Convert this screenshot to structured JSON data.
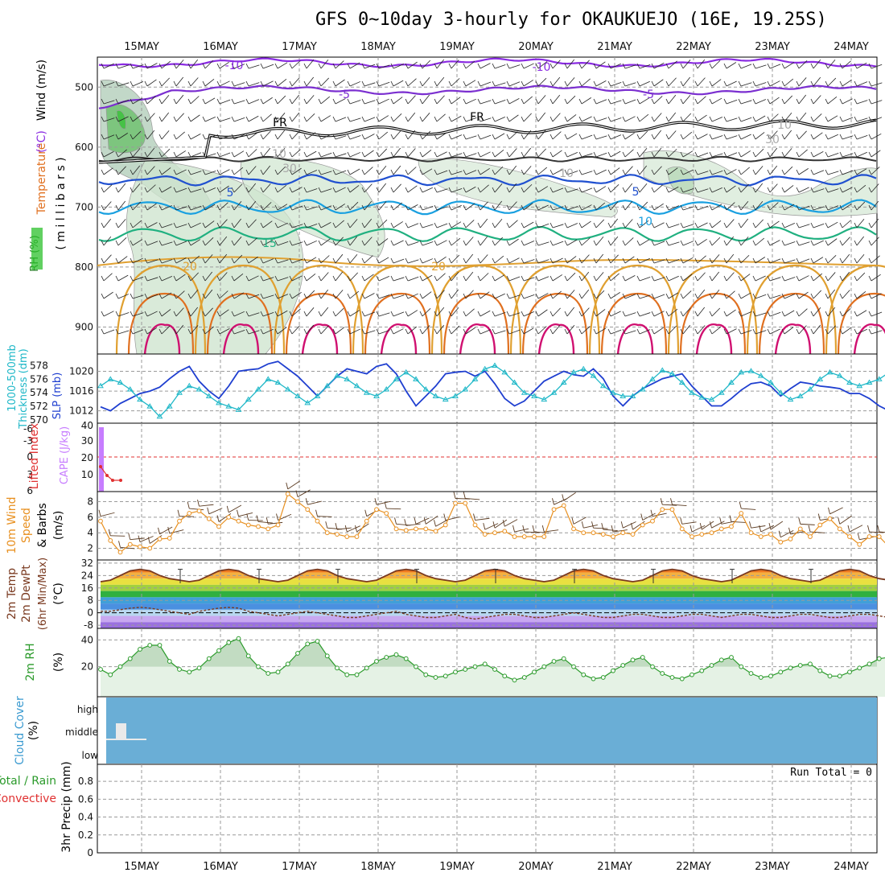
{
  "title": "GFS 0~10day 3-hourly for OKAUKUEJO (16E, 19.25S)",
  "colors": {
    "grid": "#9a9a9a",
    "temp_minus10": "#8a2be2",
    "temp_minus5": "#7b2fd0",
    "freezing": "#000000",
    "temp_5": "#2050d0",
    "temp_10": "#1aa0e0",
    "temp_15": "#20b080",
    "temp_20": "#e0a030",
    "temp_25": "#e07020",
    "temp_30": "#d01070",
    "rh_fill": "#cfe5cf",
    "rh_dark": "#8fb89a",
    "slp": "#1f3fd0",
    "thickness": "#20b8c8",
    "cape": "#c77dff",
    "li": "#e03030",
    "wind10": "#e89020",
    "barb": "#5a3a20",
    "temp2m": "#7a3a20",
    "dew2m": "#7a3a20",
    "rh2m": "#2a9a2a",
    "cloud": "#6aaed6"
  },
  "dates": [
    "15MAY",
    "16MAY",
    "17MAY",
    "18MAY",
    "19MAY",
    "20MAY",
    "21MAY",
    "22MAY",
    "23MAY",
    "24MAY"
  ],
  "panels": {
    "upper": {
      "ylabel_parts": [
        {
          "text": "RH (%)",
          "color": "#1a7a1a"
        },
        {
          "text": "Temperature",
          "color": "#e07020"
        },
        {
          "text": "(°C)",
          "color": "#8a2be2"
        },
        {
          "text": "Wind (m/s)",
          "color": "#000000"
        }
      ],
      "ylabel2": "( m i l l i b a r s )",
      "yticks": [
        "500",
        "600",
        "700",
        "800",
        "900"
      ],
      "contour_labels": [
        {
          "text": "-10",
          "color": "#8a2be2"
        },
        {
          "text": "-10",
          "color": "#8a2be2"
        },
        {
          "text": "-5",
          "color": "#7b2fd0"
        },
        {
          "text": "-5",
          "color": "#7b2fd0"
        },
        {
          "text": "FR",
          "color": "#000000"
        },
        {
          "text": "FR",
          "color": "#000000"
        },
        {
          "text": "5",
          "color": "#2050d0"
        },
        {
          "text": "5",
          "color": "#2050d0"
        },
        {
          "text": "10",
          "color": "#1aa0e0"
        },
        {
          "text": "15",
          "color": "#20b080"
        },
        {
          "text": "20",
          "color": "#e0a030"
        },
        {
          "text": "20",
          "color": "#e0a030"
        },
        {
          "text": "10",
          "color": "#aaaaaa"
        },
        {
          "text": "30",
          "color": "#aaaaaa"
        },
        {
          "text": "10",
          "color": "#aaaaaa"
        },
        {
          "text": "10",
          "color": "#aaaaaa"
        },
        {
          "text": "30",
          "color": "#aaaaaa"
        }
      ]
    },
    "slp": {
      "ylabel_thick": "Thickness (dm)",
      "ylabel_thick2": "1000-500mb",
      "ylabel_slp": "SLP (mb)",
      "yticks_thick": [
        "578",
        "576",
        "574",
        "572",
        "570"
      ],
      "yticks_slp": [
        "1020",
        "1016",
        "1012"
      ]
    },
    "cape": {
      "ylabel_li": "Lifted Index",
      "ylabel_cape": "CAPE (J/kg)",
      "yticks_li": [
        "-3",
        "0",
        "3",
        "6"
      ],
      "yticks_li_top": "-6",
      "yticks_cape": [
        "40",
        "30",
        "20",
        "10"
      ]
    },
    "wind": {
      "ylabel1": "10m Wind",
      "ylabel2": "Speed",
      "ylabel3": "& Barbs",
      "ylabel4": "(m/s)",
      "yticks": [
        "8",
        "6",
        "4",
        "2"
      ]
    },
    "temp": {
      "ylabel1": "2m Temp",
      "ylabel2": "2m DewPt",
      "ylabel3": "(6hr Min/Max)",
      "ylabel4": "(°C)",
      "yticks": [
        "32",
        "24",
        "16",
        "8",
        "0",
        "-8"
      ]
    },
    "rh": {
      "ylabel1": "2m RH",
      "ylabel2": "(%)",
      "yticks": [
        "40",
        "20"
      ]
    },
    "cloud": {
      "ylabel1": "Cloud Cover",
      "ylabel2": "(%)",
      "levels": [
        "high",
        "middle",
        "low"
      ]
    },
    "precip": {
      "ylabel1": "Total / Rain",
      "ylabel2": "Convective",
      "ylabel3": "3hr Precip (mm)",
      "yticks": [
        "0.8",
        "0.6",
        "0.4",
        "0.2",
        "0"
      ],
      "run_total": "Run Total = 0"
    }
  },
  "chart_data": [
    {
      "type": "line",
      "title": "GFS 0~10day 3-hourly for OKAUKUEJO (16E, 19.25S)",
      "name": "Sea level pressure and 1000-500mb thickness",
      "x_units": "3-hourly steps from 14 May 12Z",
      "ylabel": "SLP (mb)",
      "series": [
        {
          "name": "SLP (mb)",
          "values": [
            1012.8,
            1012,
            1013.5,
            1014.5,
            1015.5,
            1016,
            1016.8,
            1018.5,
            1020,
            1021,
            1018,
            1016,
            1014.5,
            1017,
            1020,
            1020.3,
            1020.5,
            1021.5,
            1022,
            1020.5,
            1019,
            1017,
            1015,
            1017,
            1019,
            1020.5,
            1020,
            1019.5,
            1021,
            1021.5,
            1019.5,
            1016,
            1013,
            1015,
            1017,
            1019.5,
            1019.8,
            1020,
            1019,
            1020,
            1017.5,
            1014.5,
            1013,
            1014,
            1016,
            1018,
            1019,
            1020,
            1019.3,
            1019,
            1020.5,
            1018.5,
            1015,
            1013,
            1015,
            1016.5,
            1017.5,
            1018.5,
            1019,
            1019.5,
            1017,
            1015,
            1013,
            1013,
            1014.5,
            1016.2,
            1017.5,
            1017.8,
            1017,
            1015,
            1016.5,
            1017.8,
            1017.5,
            1017,
            1016.8,
            1016.5,
            1015.5,
            1015.5,
            1014.5,
            1013,
            1012,
            1010.5,
            1011.5,
            1012,
            1012,
            1013,
            1014
          ]
        },
        {
          "name": "Thickness (dm)",
          "values": [
            575,
            576,
            575.5,
            574.5,
            573,
            572,
            570.5,
            572,
            574,
            575,
            574.5,
            573.5,
            572.5,
            572,
            571.5,
            573,
            574.5,
            576,
            575.5,
            574.5,
            573.5,
            572.5,
            573.5,
            575,
            576.5,
            576,
            575,
            574,
            573.5,
            574.5,
            576,
            577,
            576,
            574.5,
            573.5,
            573,
            573.5,
            574.5,
            576,
            577.5,
            578,
            577,
            575.5,
            574,
            573.5,
            573,
            574,
            575.5,
            577,
            577.5,
            576.5,
            575,
            574,
            573.5,
            573.5,
            574.5,
            576,
            577.3,
            576.8,
            575.5,
            574,
            573.3,
            573,
            574,
            575.5,
            577,
            577.2,
            576.5,
            575.5,
            574,
            573,
            573.5,
            574.5,
            576,
            577,
            576.5,
            575.5,
            575,
            575.5,
            576,
            577,
            577.3,
            576.5,
            575.5,
            574,
            574.5,
            575
          ]
        }
      ]
    },
    {
      "type": "line",
      "name": "10m wind speed",
      "ylabel": "m/s",
      "ylim": [
        1,
        9
      ],
      "series": [
        {
          "name": "10m Wind Speed",
          "values": [
            5.5,
            3,
            1.5,
            2.5,
            2.2,
            2,
            3.2,
            3.3,
            5.5,
            6.5,
            6.8,
            5.8,
            4.8,
            6,
            5.5,
            5,
            4.8,
            4.5,
            5,
            9,
            8,
            7,
            5.5,
            4,
            3.8,
            3.5,
            3.5,
            5.5,
            7,
            6.5,
            4.5,
            4.3,
            4.5,
            4.5,
            4.2,
            5,
            7.8,
            7.8,
            5,
            3.8,
            4,
            4.2,
            3.5,
            3.5,
            3.5,
            3.5,
            7,
            7.5,
            4.5,
            4,
            4,
            3.8,
            3.5,
            4,
            3.8,
            5,
            5.5,
            7,
            7,
            4.5,
            3.5,
            3.8,
            4,
            4.5,
            4.8,
            6.5,
            4,
            3.5,
            3.8,
            2.8,
            3.2,
            4.5,
            3.5,
            5,
            5.8,
            4.5,
            3.5,
            2.5,
            3.5,
            3.5,
            2.2,
            1.5,
            1.5,
            4.5,
            4.8,
            3,
            3.2
          ]
        }
      ]
    },
    {
      "type": "area",
      "name": "2m temperature",
      "ylabel": "°C",
      "ylim": [
        -10,
        34
      ],
      "series": [
        {
          "name": "2m Temp",
          "values": [
            20,
            21,
            24,
            27,
            28,
            27,
            24,
            22,
            21,
            20,
            21,
            24,
            27,
            28,
            27,
            24,
            22,
            21,
            20,
            21,
            24,
            27,
            28,
            27,
            24,
            22,
            21,
            20,
            21,
            24,
            27,
            28,
            27,
            24,
            22,
            21,
            20,
            21,
            24,
            27,
            28,
            27,
            24,
            22,
            21,
            20,
            21,
            24,
            27,
            28,
            27,
            24,
            22,
            21,
            20,
            21,
            24,
            27,
            28,
            27,
            24,
            22,
            21,
            20,
            21,
            24,
            27,
            28,
            27,
            24,
            22,
            21,
            20,
            21,
            24,
            27,
            28,
            27,
            24,
            22,
            21,
            20,
            21,
            24,
            26,
            27,
            26
          ]
        },
        {
          "name": "2m DewPt",
          "values": [
            1,
            1,
            2,
            3,
            3.5,
            3,
            2,
            1,
            0,
            -1,
            1,
            2,
            3,
            3.5,
            3,
            1,
            0,
            -1,
            -2,
            -1,
            0,
            1,
            0,
            -1,
            -2,
            -3,
            -3,
            -2,
            -1,
            0,
            1,
            -1,
            -2,
            -3,
            -3,
            -2,
            -1,
            -3,
            -4,
            -3,
            -2,
            -1,
            -1,
            -2,
            -3,
            -3,
            -2,
            -1,
            0,
            -1,
            -2,
            -3,
            -3,
            -2,
            -1,
            -1,
            -2,
            -3,
            -3,
            -2,
            -1,
            -1,
            -2,
            -3,
            -2,
            -1,
            -1,
            -2,
            -3,
            -3,
            -2,
            -1,
            -1,
            -2,
            -3,
            -3,
            -2,
            -1,
            -1,
            -2,
            -3,
            -3,
            -2,
            -2,
            -1,
            -2,
            -2
          ]
        }
      ]
    },
    {
      "type": "area",
      "name": "2m relative humidity",
      "ylabel": "%",
      "ylim": [
        0,
        45
      ],
      "series": [
        {
          "name": "2m RH",
          "values": [
            18,
            14,
            20,
            26,
            33,
            36,
            36,
            24,
            18,
            16,
            19,
            26,
            32,
            38,
            41,
            28,
            20,
            15,
            16,
            22,
            30,
            37,
            39,
            28,
            19,
            14,
            14,
            19,
            24,
            27,
            29,
            26,
            20,
            14,
            12,
            13,
            16,
            18,
            20,
            22,
            18,
            13,
            10,
            12,
            16,
            20,
            24,
            26,
            20,
            14,
            11,
            12,
            17,
            21,
            25,
            27,
            20,
            15,
            12,
            11,
            14,
            17,
            21,
            25,
            27,
            20,
            15,
            12,
            13,
            16,
            19,
            21,
            22,
            17,
            13,
            13,
            16,
            19,
            22,
            26,
            27,
            27,
            27,
            27,
            27,
            27,
            27
          ]
        }
      ]
    }
  ]
}
